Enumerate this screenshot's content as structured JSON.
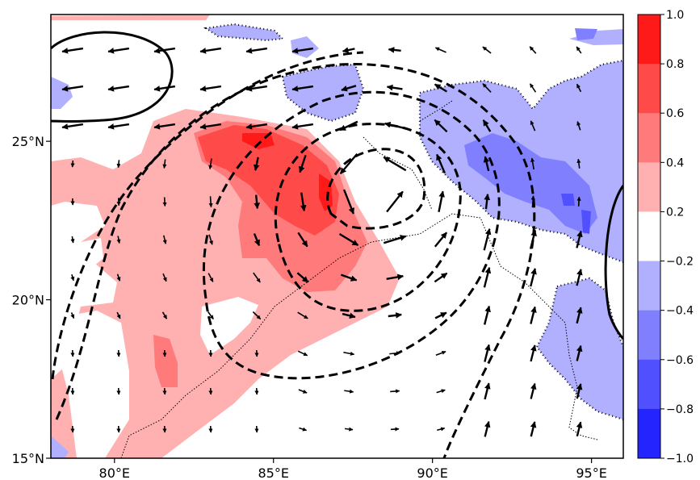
{
  "map": {
    "lon_range": [
      78,
      96
    ],
    "lat_range": [
      15,
      29
    ],
    "x_ticks": [
      {
        "value": 80,
        "label": "80°E"
      },
      {
        "value": 85,
        "label": "85°E"
      },
      {
        "value": 90,
        "label": "90°E"
      },
      {
        "value": 95,
        "label": "95°E"
      }
    ],
    "y_ticks": [
      {
        "value": 15,
        "label": "15°N"
      },
      {
        "value": 20,
        "label": "20°N"
      },
      {
        "value": 25,
        "label": "25°N"
      }
    ],
    "colorbar": {
      "range": [
        -1.0,
        1.0
      ],
      "labels": [
        "1.0",
        "0.8",
        "0.6",
        "0.4",
        "0.2",
        "−0.2",
        "−0.4",
        "−0.6",
        "−0.8",
        "−1.0"
      ],
      "levels": [
        1.0,
        0.8,
        0.6,
        0.4,
        0.2,
        -0.2,
        -0.4,
        -0.6,
        -0.8,
        -1.0
      ],
      "colors": [
        "#ff1a1a",
        "#ff4a4a",
        "#ff7a7a",
        "#ffb0b0",
        "#ffffff",
        "#b0b0ff",
        "#8080ff",
        "#5050ff",
        "#2424ff"
      ]
    },
    "colors": {
      "pos_weak": "#ffb0b0",
      "pos_mid": "#ff7a7a",
      "pos_strong": "#ff4a4a",
      "pos_max": "#ff1a1a",
      "neg_weak": "#b0b0ff",
      "neg_mid": "#8080ff",
      "contour": "#000000"
    }
  }
}
